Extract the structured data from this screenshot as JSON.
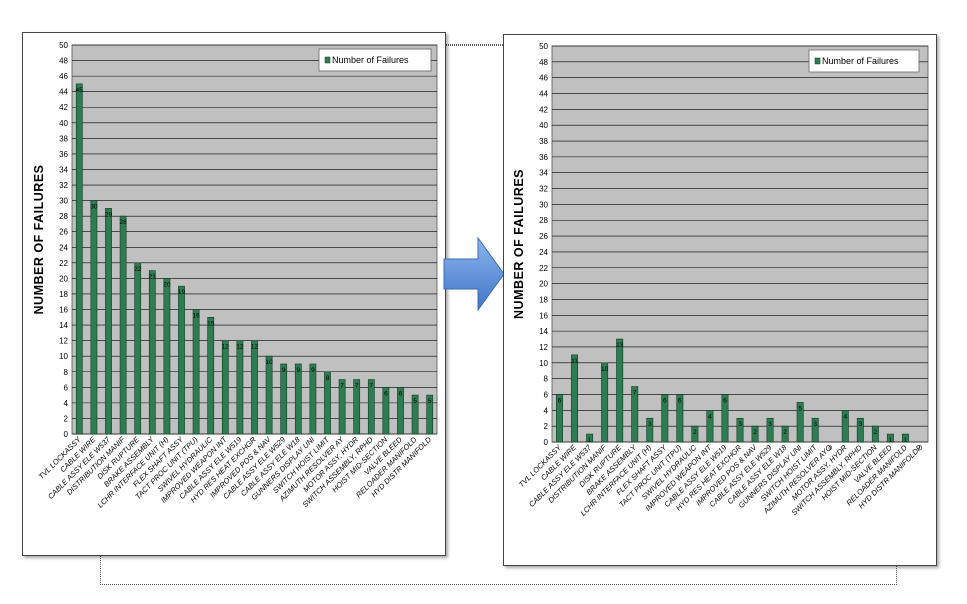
{
  "colors": {
    "bar_fill": "#2e7d52",
    "bar_edge": "#0e3b22",
    "plot_bg": "#c0c0c0",
    "grid": "#000000",
    "arrow": "#5b8fd6"
  },
  "chart_data": [
    {
      "type": "bar",
      "ylabel": "NUMBER OF FAILURES",
      "ylim": [
        0,
        50
      ],
      "ytick_step": 2,
      "grid": true,
      "legend": {
        "position": "top-right",
        "entries": [
          "Number of Failures"
        ]
      },
      "series": [
        {
          "name": "Number of Failures",
          "values": [
            45,
            30,
            29,
            28,
            22,
            21,
            20,
            19,
            16,
            15,
            12,
            12,
            12,
            10,
            9,
            9,
            9,
            8,
            7,
            7,
            7,
            6,
            6,
            5,
            5
          ]
        }
      ],
      "categories": [
        "TVL LOCKASSY",
        "CABLE WIRE",
        "CABLE ASSY ELE W537",
        "DISTRIBUTION MANIF",
        "DISK RUPTURE",
        "BRAKE ASSEMBLY",
        "LCHR INTERFACE UNIT (H)",
        "FLEX SHAFT ASSY",
        "TACT PROC UNIT (TPU)",
        "SWIVEL HYDRAULIC",
        "IMPROVED WEAPON INT",
        "CABLE ASSY ELE W519",
        "HYD RES HEAT EXCHGR",
        "IMPROVED POS & NAV",
        "CABLE ASSY ELE W529",
        "CABLE ASSY ELE W18",
        "GUNNERS DISPLAY UNI",
        "SWITCH HOIST LIMIT",
        "AZIMUTH RESOLVER AY",
        "MOTOR ASSY, HYDR",
        "SWITCH ASSEMBLY, RPHD",
        "HOIST MID-SECTION",
        "VALVE BLEED",
        "RELOADER MANIFOLD",
        "HYD DISTR MANIFOLD"
      ]
    },
    {
      "type": "bar",
      "ylabel": "NUMBER OF FAILURES",
      "ylim": [
        0,
        50
      ],
      "ytick_step": 2,
      "grid": true,
      "legend": {
        "position": "top-right",
        "entries": [
          "Number of Failures"
        ]
      },
      "series": [
        {
          "name": "Number of Failures",
          "values": [
            6,
            11,
            1,
            10,
            13,
            7,
            3,
            6,
            6,
            2,
            4,
            6,
            3,
            2,
            3,
            2,
            5,
            3,
            0,
            4,
            3,
            2,
            1,
            1,
            0
          ]
        }
      ],
      "categories": [
        "TVL LOCKASSY",
        "CABLE WIRE",
        "CABLE ASSY ELE W537",
        "DISTRIBUTION MANIF",
        "DISK RUPTURE",
        "BRAKE ASSEMBLY",
        "LCHR INTERFACE UNIT (H)",
        "FLEX SHAFT ASSY",
        "TACT PROC UNIT (TPU)",
        "SWIVEL HYDRAULIC",
        "IMPROVED WEAPON INT",
        "CABLE ASSY ELE W519",
        "HYD RES HEAT EXCHGR",
        "IMPROVED POS & NAV",
        "CABLE ASSY ELE W529",
        "CABLE ASSY ELE W18",
        "GUNNERS DISPLAY UNI",
        "SWITCH HOIST LIMIT",
        "AZIMUTH RESOLVER AYO",
        "MOTOR ASSY, HYDR",
        "SWITCH ASSEMBLY, RPHD",
        "HOIST MID-SECTION",
        "VALVE BLEED",
        "RELOADER MANIFOLD",
        "HYD DISTR MANIFOLDP"
      ]
    }
  ]
}
